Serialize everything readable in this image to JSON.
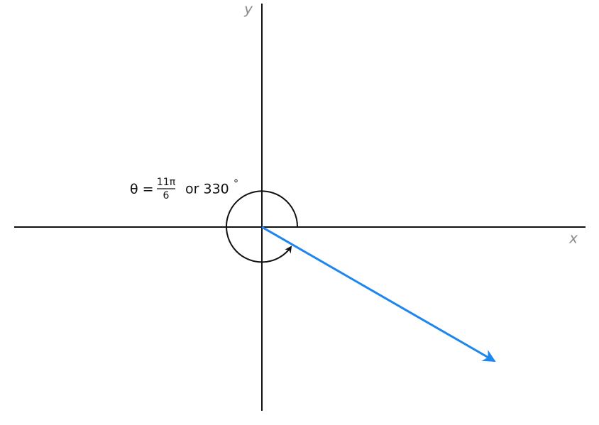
{
  "axes": {
    "x_label": "x",
    "y_label": "y"
  },
  "angle": {
    "lhs": "θ =",
    "numerator": "11π",
    "denominator": "6",
    "alternative": "or 330",
    "degree": "°"
  }
}
